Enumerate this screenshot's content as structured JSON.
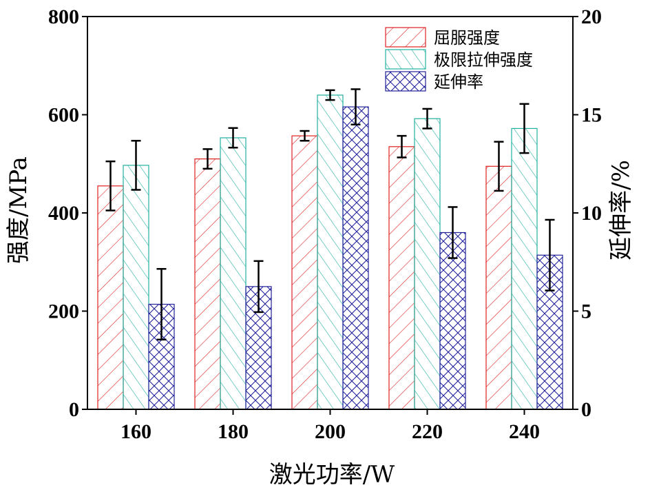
{
  "chart_data": {
    "type": "bar",
    "xlabel": "激光功率/W",
    "ylabel_left": "强度/MPa",
    "ylabel_right": "延伸率/%",
    "categories": [
      "160",
      "180",
      "200",
      "220",
      "240"
    ],
    "ylim_left": [
      0,
      800
    ],
    "ylim_right": [
      0,
      20
    ],
    "yticks_left": [
      "0",
      "200",
      "400",
      "600",
      "800"
    ],
    "yticks_right": [
      "0",
      "5",
      "10",
      "15",
      "20"
    ],
    "legend_position": "top-right",
    "grid": false,
    "series": [
      {
        "name": "屈服强度",
        "axis": "left",
        "color": "#e02020",
        "pattern": "diagonal-hatch",
        "values": [
          455,
          510,
          557,
          535,
          495
        ],
        "errors": [
          50,
          20,
          10,
          22,
          50
        ]
      },
      {
        "name": "极限拉伸强度",
        "axis": "left",
        "color": "#20b0a0",
        "pattern": "reverse-diagonal-hatch",
        "values": [
          497,
          553,
          640,
          592,
          572
        ],
        "errors": [
          50,
          20,
          10,
          20,
          50
        ]
      },
      {
        "name": "延伸率",
        "axis": "right",
        "color": "#20209a",
        "pattern": "crosshatch",
        "values": [
          5.35,
          6.25,
          15.4,
          9.0,
          7.85
        ],
        "errors": [
          1.8,
          1.3,
          0.9,
          1.3,
          1.8
        ]
      }
    ]
  }
}
